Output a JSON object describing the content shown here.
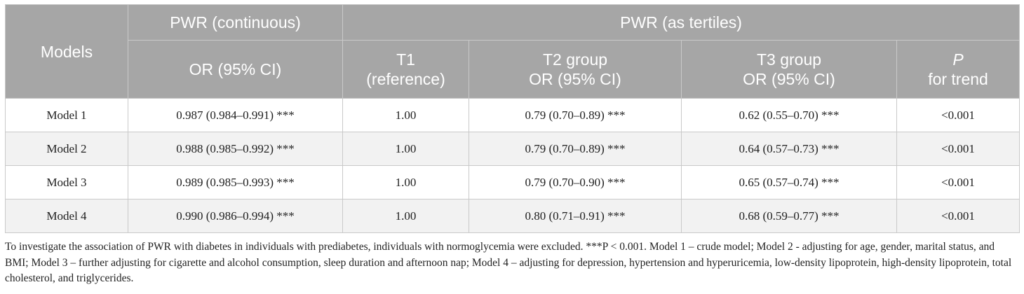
{
  "header": {
    "models": "Models",
    "continuous": "PWR (continuous)",
    "continuous_sub": "OR (95% CI)",
    "tertiles": "PWR (as tertiles)",
    "t1_line1": "T1",
    "t1_line2": "(reference)",
    "t2_line1": "T2 group",
    "t2_line2": "OR (95% CI)",
    "t3_line1": "T3 group",
    "t3_line2": "OR (95% CI)",
    "p_line1": "P",
    "p_line2": "for trend"
  },
  "rows": [
    {
      "model": "Model 1",
      "continuous": "0.987 (0.984–0.991) ***",
      "t1": "1.00",
      "t2": "0.79 (0.70–0.89) ***",
      "t3": "0.62 (0.55–0.70) ***",
      "p": "<0.001"
    },
    {
      "model": "Model 2",
      "continuous": "0.988 (0.985–0.992) ***",
      "t1": "1.00",
      "t2": "0.79 (0.70–0.89) ***",
      "t3": "0.64 (0.57–0.73) ***",
      "p": "<0.001"
    },
    {
      "model": "Model 3",
      "continuous": "0.989 (0.985–0.993) ***",
      "t1": "1.00",
      "t2": "0.79 (0.70–0.90) ***",
      "t3": "0.65 (0.57–0.74) ***",
      "p": "<0.001"
    },
    {
      "model": "Model 4",
      "continuous": "0.990 (0.986–0.994) ***",
      "t1": "1.00",
      "t2": "0.80 (0.71–0.91) ***",
      "t3": "0.68 (0.59–0.77) ***",
      "p": "<0.001"
    }
  ],
  "footnote": "To investigate the association of PWR with diabetes in individuals with prediabetes, individuals with normoglycemia were excluded. ***P < 0.001. Model 1 – crude model; Model 2 - adjusting for age, gender, marital status, and BMI; Model 3 – further adjusting for cigarette and alcohol consumption, sleep duration and afternoon nap; Model 4 – adjusting for depression, hypertension and hyperuricemia, low-density lipoprotein, high-density lipoprotein, total cholesterol, and triglycerides."
}
